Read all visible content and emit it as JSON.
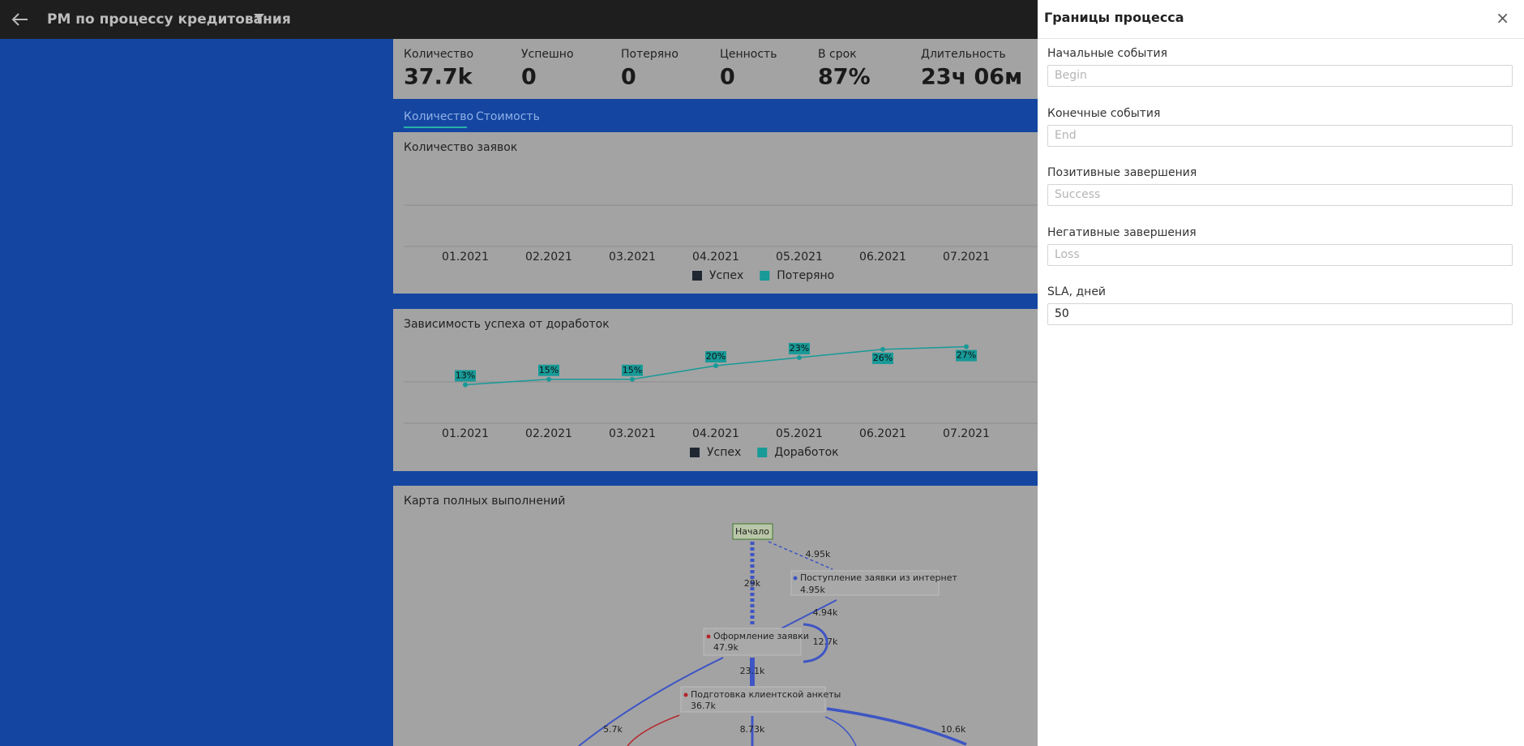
{
  "header": {
    "title": "PM по процессу кредитования"
  },
  "kpis": [
    {
      "label": "Количество",
      "value": "37.7k"
    },
    {
      "label": "Успешно",
      "value": "0"
    },
    {
      "label": "Потеряно",
      "value": "0"
    },
    {
      "label": "Ценность",
      "value": "0"
    },
    {
      "label": "В срок",
      "value": "87%"
    },
    {
      "label": "Длительность",
      "value": "23ч 06м"
    }
  ],
  "tabs": [
    "Количество",
    "Стоимость"
  ],
  "chart_data": [
    {
      "type": "bar",
      "title": "Количество заявок",
      "categories": [
        "01.2021",
        "02.2021",
        "03.2021",
        "04.2021",
        "05.2021",
        "06.2021",
        "07.2021"
      ],
      "series": [
        {
          "name": "Успех",
          "color": "#1f2733"
        },
        {
          "name": "Потеряно",
          "color": "#179a98"
        }
      ]
    },
    {
      "type": "line",
      "title": "Зависимость успеха от доработок",
      "categories": [
        "01.2021",
        "02.2021",
        "03.2021",
        "04.2021",
        "05.2021",
        "06.2021",
        "07.2021"
      ],
      "series": [
        {
          "name": "Успех",
          "color": "#1f2733"
        },
        {
          "name": "Доработок",
          "color": "#179a98",
          "values": [
            13,
            15,
            15,
            20,
            23,
            26,
            27
          ],
          "value_labels": [
            "13%",
            "15%",
            "15%",
            "20%",
            "23%",
            "26%",
            "27%"
          ]
        }
      ]
    }
  ],
  "process_map": {
    "title": "Карта полных выполнений",
    "nodes": [
      {
        "label": "Начало"
      },
      {
        "label": "Поступление заявки из интернет",
        "count": "4.95k"
      },
      {
        "label": "Оформление заявки",
        "count": "47.9k"
      },
      {
        "label": "Подготовка клиентской анкеты",
        "count": "36.7k"
      }
    ],
    "edges": [
      "4.95k",
      "29k",
      "4.94k",
      "12.7k",
      "23.1k",
      "5.7k",
      "8.73k",
      "10.6k"
    ]
  },
  "panel": {
    "title": "Границы процесса",
    "fields": [
      {
        "label": "Начальные события",
        "placeholder": "Begin"
      },
      {
        "label": "Конечные события",
        "placeholder": "End"
      },
      {
        "label": "Позитивные завершения",
        "placeholder": "Success"
      },
      {
        "label": "Негативные завершения",
        "placeholder": "Loss"
      },
      {
        "label": "SLA, дней",
        "value": "50"
      }
    ]
  }
}
